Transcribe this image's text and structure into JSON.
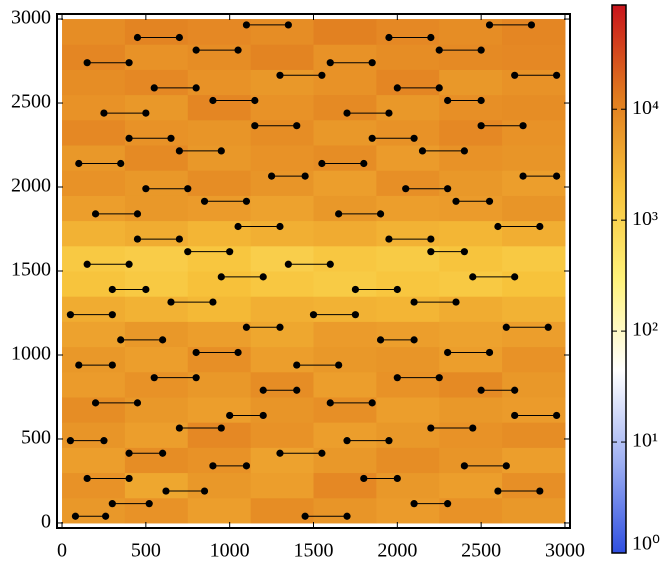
{
  "chart_data": {
    "type": "heatmap",
    "xlim": [
      -30,
      3030
    ],
    "ylim": [
      -30,
      3030
    ],
    "xticks": [
      0,
      500,
      1000,
      1500,
      2000,
      2500,
      3000
    ],
    "yticks": [
      0,
      500,
      1000,
      1500,
      2000,
      2500,
      3000
    ],
    "heatmap": {
      "extent": [
        0,
        3000,
        0,
        3000
      ],
      "log_scale": true,
      "clim": [
        1,
        87000
      ],
      "colormap": [
        "#2f4fe0",
        "#9fb0f2",
        "#ffffff",
        "#fff27a",
        "#f7c23a",
        "#e07a1e",
        "#c8141c"
      ],
      "z": [
        [
          6000,
          7000,
          5000,
          8000,
          6500,
          5500,
          7000,
          6000
        ],
        [
          7000,
          4000,
          6000,
          5000,
          9000,
          6000,
          5000,
          7500
        ],
        [
          5000,
          8000,
          7000,
          4500,
          6000,
          8000,
          6500,
          5000
        ],
        [
          6500,
          5000,
          9000,
          7000,
          5000,
          6000,
          7000,
          8000
        ],
        [
          8000,
          6000,
          5000,
          6500,
          7500,
          5000,
          6000,
          5500
        ],
        [
          5500,
          7000,
          6000,
          8000,
          5000,
          7000,
          8500,
          6000
        ],
        [
          6000,
          5000,
          7500,
          5000,
          6000,
          6500,
          5000,
          7000
        ],
        [
          4500,
          6000,
          5000,
          4000,
          5500,
          5000,
          4500,
          5000
        ],
        [
          3500,
          3000,
          2500,
          3200,
          3000,
          2800,
          3500,
          3000
        ],
        [
          1800,
          1500,
          2000,
          1600,
          1400,
          1700,
          1500,
          1900
        ],
        [
          1500,
          1300,
          1700,
          1200,
          1600,
          1400,
          1800,
          1500
        ],
        [
          3000,
          3500,
          2800,
          3200,
          3600,
          3000,
          2700,
          3300
        ],
        [
          5000,
          6000,
          5500,
          4500,
          6000,
          5000,
          5500,
          6500
        ],
        [
          7000,
          6000,
          8000,
          6500,
          5000,
          7500,
          6000,
          5000
        ],
        [
          6000,
          8500,
          6000,
          7000,
          8000,
          5500,
          7000,
          6500
        ],
        [
          9000,
          7000,
          6500,
          8000,
          6000,
          7000,
          9000,
          7000
        ],
        [
          7000,
          6000,
          9500,
          7000,
          8500,
          6000,
          7500,
          8000
        ],
        [
          8000,
          9000,
          7000,
          6000,
          7000,
          9500,
          6000,
          7000
        ],
        [
          9500,
          7000,
          8000,
          10000,
          7000,
          8000,
          8500,
          9000
        ],
        [
          8000,
          10000,
          9000,
          8000,
          11000,
          9000,
          8000,
          9500
        ]
      ]
    },
    "pairs": [
      [
        80,
        260,
        40
      ],
      [
        1450,
        1700,
        40
      ],
      [
        300,
        520,
        115
      ],
      [
        2100,
        2300,
        115
      ],
      [
        620,
        850,
        190
      ],
      [
        2600,
        2850,
        190
      ],
      [
        150,
        400,
        265
      ],
      [
        1800,
        2000,
        265
      ],
      [
        900,
        1100,
        340
      ],
      [
        2400,
        2650,
        340
      ],
      [
        400,
        600,
        415
      ],
      [
        1300,
        1550,
        415
      ],
      [
        1700,
        1950,
        490
      ],
      [
        50,
        250,
        490
      ],
      [
        700,
        950,
        565
      ],
      [
        2200,
        2450,
        565
      ],
      [
        1000,
        1200,
        640
      ],
      [
        2700,
        2950,
        640
      ],
      [
        200,
        450,
        715
      ],
      [
        1600,
        1850,
        715
      ],
      [
        1200,
        1400,
        790
      ],
      [
        2500,
        2700,
        790
      ],
      [
        550,
        800,
        865
      ],
      [
        2000,
        2250,
        865
      ],
      [
        100,
        300,
        940
      ],
      [
        1400,
        1650,
        940
      ],
      [
        800,
        1050,
        1015
      ],
      [
        2300,
        2550,
        1015
      ],
      [
        350,
        600,
        1090
      ],
      [
        1900,
        2100,
        1090
      ],
      [
        1100,
        1300,
        1165
      ],
      [
        2650,
        2900,
        1165
      ],
      [
        50,
        300,
        1240
      ],
      [
        1500,
        1750,
        1240
      ],
      [
        650,
        900,
        1315
      ],
      [
        2100,
        2350,
        1315
      ],
      [
        300,
        500,
        1390
      ],
      [
        1750,
        2000,
        1390
      ],
      [
        950,
        1200,
        1465
      ],
      [
        2450,
        2700,
        1465
      ],
      [
        150,
        400,
        1540
      ],
      [
        1350,
        1600,
        1540
      ],
      [
        750,
        1000,
        1615
      ],
      [
        2200,
        2400,
        1615
      ],
      [
        450,
        700,
        1690
      ],
      [
        1950,
        2200,
        1690
      ],
      [
        1050,
        1300,
        1765
      ],
      [
        2600,
        2850,
        1765
      ],
      [
        200,
        450,
        1840
      ],
      [
        1650,
        1900,
        1840
      ],
      [
        850,
        1100,
        1915
      ],
      [
        2350,
        2550,
        1915
      ],
      [
        500,
        750,
        1990
      ],
      [
        2050,
        2300,
        1990
      ],
      [
        1250,
        1450,
        2065
      ],
      [
        2750,
        2950,
        2065
      ],
      [
        100,
        350,
        2140
      ],
      [
        1550,
        1800,
        2140
      ],
      [
        700,
        950,
        2215
      ],
      [
        2150,
        2400,
        2215
      ],
      [
        400,
        650,
        2290
      ],
      [
        1850,
        2100,
        2290
      ],
      [
        1150,
        1400,
        2365
      ],
      [
        2500,
        2750,
        2365
      ],
      [
        250,
        500,
        2440
      ],
      [
        1700,
        1950,
        2440
      ],
      [
        900,
        1150,
        2515
      ],
      [
        2300,
        2500,
        2515
      ],
      [
        550,
        800,
        2590
      ],
      [
        2000,
        2250,
        2590
      ],
      [
        1300,
        1550,
        2665
      ],
      [
        2700,
        2950,
        2665
      ],
      [
        150,
        400,
        2740
      ],
      [
        1600,
        1850,
        2740
      ],
      [
        800,
        1050,
        2815
      ],
      [
        2250,
        2500,
        2815
      ],
      [
        450,
        700,
        2890
      ],
      [
        1950,
        2200,
        2890
      ],
      [
        1100,
        1350,
        2965
      ],
      [
        2550,
        2800,
        2965
      ]
    ],
    "pair_color": "#000000",
    "colorbar_ticks": [
      {
        "value": 1,
        "label": "10⁰"
      },
      {
        "value": 10,
        "label": "10¹"
      },
      {
        "value": 100,
        "label": "10²"
      },
      {
        "value": 1000,
        "label": "10³"
      },
      {
        "value": 10000,
        "label": "10⁴"
      }
    ]
  }
}
